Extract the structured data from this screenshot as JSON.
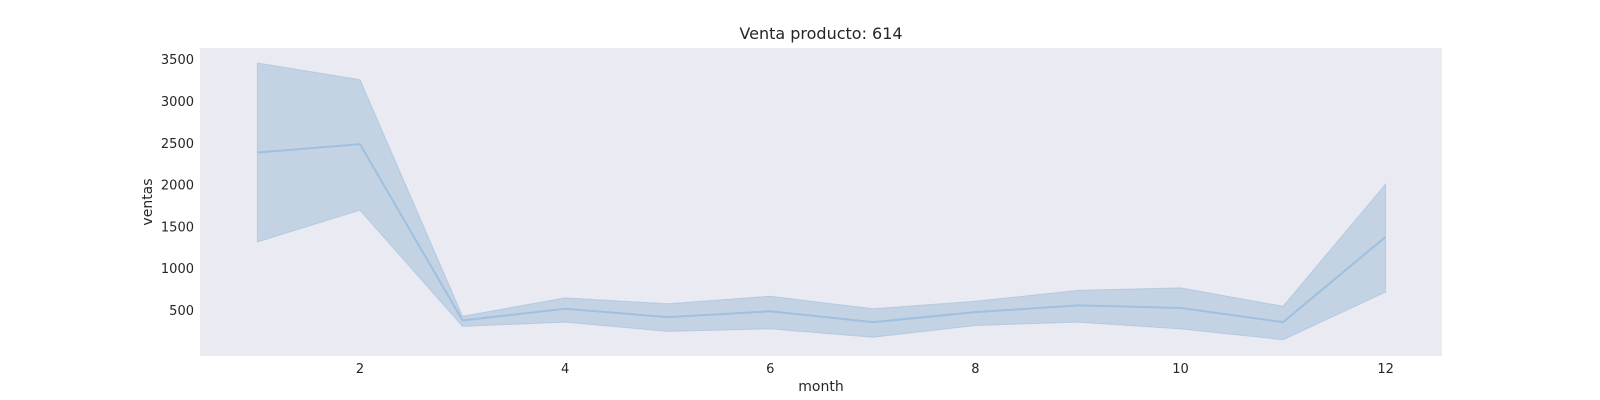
{
  "chart_data": {
    "type": "line",
    "title": "Venta producto: 614",
    "xlabel": "month",
    "ylabel": "ventas",
    "xlim": [
      0.44,
      12.55
    ],
    "ylim": [
      -45,
      3640
    ],
    "xticks": [
      2,
      4,
      6,
      8,
      10,
      12
    ],
    "yticks": [
      500,
      1000,
      1500,
      2000,
      2500,
      3000,
      3500
    ],
    "grid": false,
    "legend": "none",
    "background": "#eaeaf2",
    "line_color": "#9fc0de",
    "band_fill": "#c3d3e4",
    "series": [
      {
        "x": [
          1,
          2,
          3,
          4,
          5,
          6,
          7,
          8,
          9,
          10,
          11,
          12
        ],
        "y": [
          2390,
          2490,
          380,
          520,
          420,
          490,
          360,
          480,
          560,
          530,
          360,
          1380
        ],
        "ci_low": [
          1320,
          1700,
          310,
          360,
          250,
          280,
          180,
          320,
          360,
          280,
          150,
          720
        ],
        "ci_high": [
          3460,
          3260,
          430,
          650,
          580,
          670,
          520,
          610,
          740,
          770,
          550,
          2010
        ]
      }
    ]
  }
}
